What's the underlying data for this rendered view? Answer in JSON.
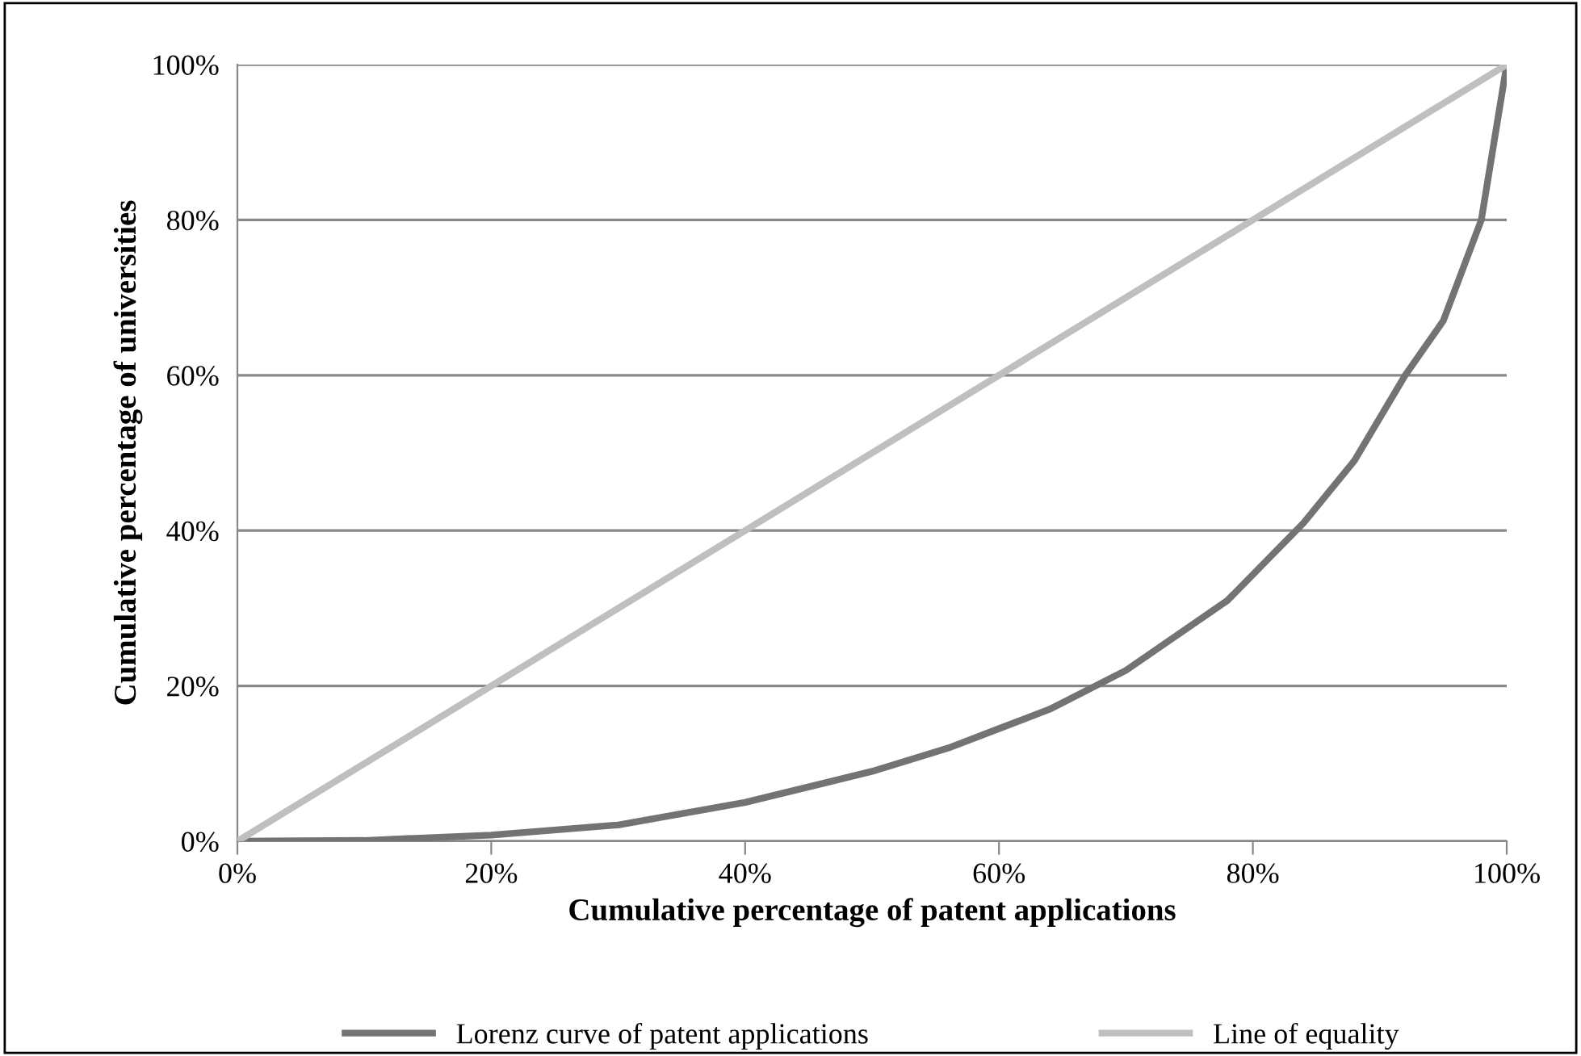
{
  "chart_data": {
    "type": "line",
    "xlabel": "Cumulative percentage of patent applications",
    "ylabel": "Cumulative percentage of universities",
    "series": [
      {
        "name": "Lorenz curve of patent applications",
        "color": "#737373",
        "x": [
          0,
          10,
          20,
          30,
          40,
          50,
          56,
          60,
          64,
          70,
          78,
          84,
          88,
          92,
          95,
          98,
          100
        ],
        "values": [
          0,
          0.1,
          0.8,
          2.1,
          5,
          9,
          12,
          14.5,
          17,
          22,
          31,
          41,
          49,
          60,
          67,
          80,
          100
        ]
      },
      {
        "name": "Line of equality",
        "color": "#bfbfbf",
        "x": [
          0,
          100
        ],
        "values": [
          0,
          100
        ]
      }
    ],
    "xlim": [
      0,
      100
    ],
    "ylim": [
      0,
      100
    ],
    "xticks": [
      {
        "value": 0,
        "label": "0%"
      },
      {
        "value": 20,
        "label": "20%"
      },
      {
        "value": 40,
        "label": "40%"
      },
      {
        "value": 60,
        "label": "60%"
      },
      {
        "value": 80,
        "label": "80%"
      },
      {
        "value": 100,
        "label": "100%"
      }
    ],
    "yticks": [
      {
        "value": 0,
        "label": "0%"
      },
      {
        "value": 20,
        "label": "20%"
      },
      {
        "value": 40,
        "label": "40%"
      },
      {
        "value": 60,
        "label": "60%"
      },
      {
        "value": 80,
        "label": "80%"
      },
      {
        "value": 100,
        "label": "100%"
      }
    ],
    "grid": "y",
    "legend": "bottom",
    "marker": "none",
    "line_style": "solid"
  }
}
